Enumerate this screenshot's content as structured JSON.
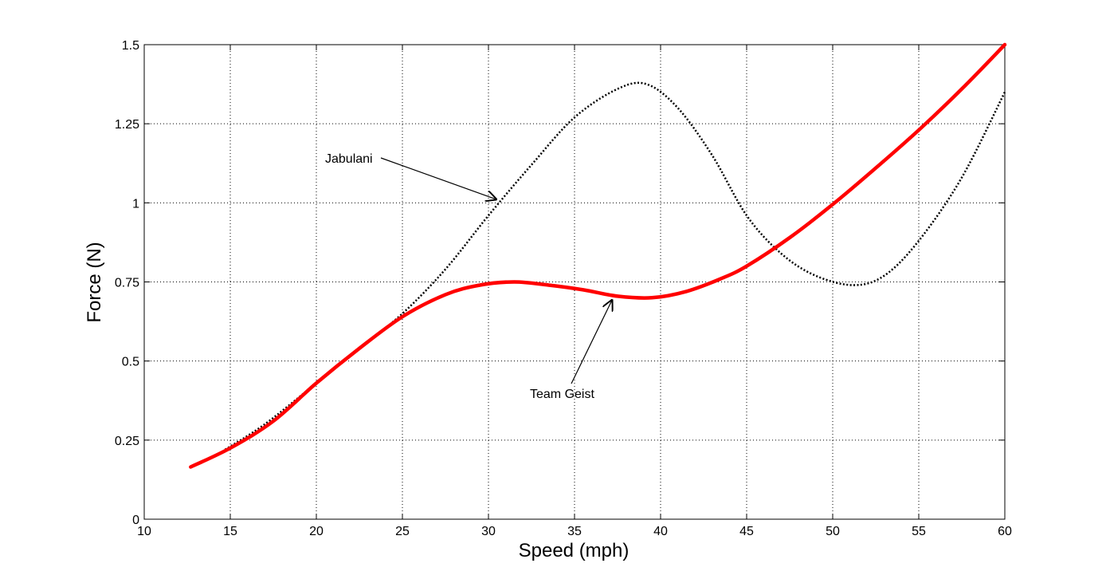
{
  "chart_data": {
    "type": "line",
    "title": "",
    "xlabel": "Speed (mph)",
    "ylabel": "Force (N)",
    "xlim": [
      10,
      60
    ],
    "ylim": [
      0,
      1.5
    ],
    "xticks": [
      10,
      15,
      20,
      25,
      30,
      35,
      40,
      45,
      50,
      55,
      60
    ],
    "yticks": [
      0,
      0.25,
      0.5,
      0.75,
      1,
      1.25,
      1.5
    ],
    "xtick_labels": [
      "10",
      "15",
      "20",
      "25",
      "30",
      "35",
      "40",
      "45",
      "50",
      "55",
      "60"
    ],
    "ytick_labels": [
      "0",
      "0.25",
      "0.5",
      "0.75",
      "1",
      "1.25",
      "1.5"
    ],
    "grid": true,
    "series": [
      {
        "name": "Jabulani",
        "color": "#000000",
        "style": "dotted",
        "x": [
          14.7,
          17,
          20,
          22.5,
          25,
          27.5,
          30,
          32.5,
          35,
          37.5,
          39.2,
          41,
          43,
          45,
          47,
          49,
          51.2,
          53,
          55,
          57.5,
          60
        ],
        "y": [
          0.22,
          0.3,
          0.43,
          0.54,
          0.65,
          0.79,
          0.96,
          1.12,
          1.27,
          1.36,
          1.375,
          1.3,
          1.15,
          0.96,
          0.84,
          0.77,
          0.74,
          0.77,
          0.88,
          1.08,
          1.35
        ]
      },
      {
        "name": "Team Geist",
        "color": "#ff0000",
        "style": "solid",
        "x": [
          12.7,
          15,
          17.5,
          20,
          22.5,
          25,
          27.5,
          29.5,
          31.5,
          33.5,
          35.5,
          37.5,
          39.5,
          41.5,
          43.5,
          45,
          47.5,
          50,
          52.5,
          55,
          57.5,
          60
        ],
        "y": [
          0.165,
          0.225,
          0.31,
          0.43,
          0.54,
          0.64,
          0.71,
          0.74,
          0.75,
          0.74,
          0.725,
          0.705,
          0.7,
          0.72,
          0.76,
          0.8,
          0.89,
          0.995,
          1.11,
          1.23,
          1.36,
          1.5
        ]
      }
    ],
    "annotations": [
      {
        "text": "Jabulani",
        "target": [
          30.5,
          1.01
        ]
      },
      {
        "text": "Team Geist",
        "target": [
          37.2,
          0.695
        ]
      }
    ]
  }
}
